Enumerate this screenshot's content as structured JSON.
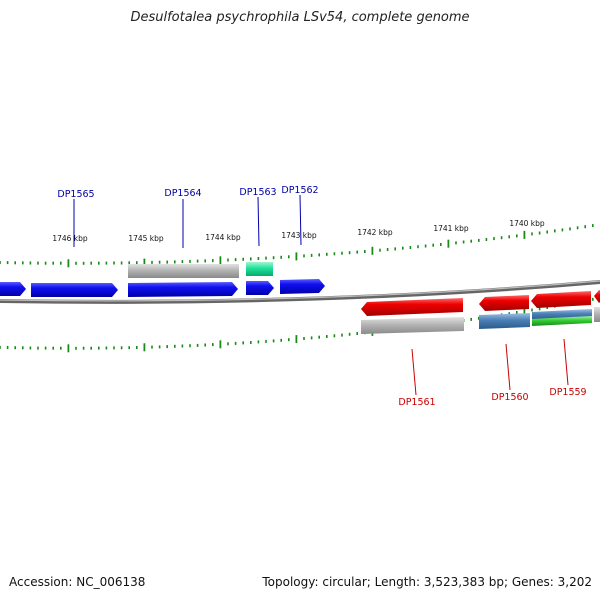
{
  "title": "Desulfotalea psychrophila LSv54, complete genome",
  "footer": {
    "accession": "Accession: NC_006138",
    "summary": "Topology: circular; Length: 3,523,383 bp; Genes: 3,202"
  },
  "colors": {
    "forward_label": "#0000aa",
    "reverse_label": "#cc0000",
    "tick": "#1a8a1a",
    "backbone": "#888888"
  },
  "scale_labels": [
    "1746 kbp",
    "1745 kbp",
    "1744 kbp",
    "1743 kbp",
    "1742 kbp",
    "1741 kbp",
    "1740 kbp"
  ],
  "gene_labels": {
    "forward": [
      "DP1565",
      "DP1564",
      "DP1563",
      "DP1562"
    ],
    "reverse": [
      "DP1561",
      "DP1560",
      "DP1559"
    ]
  }
}
